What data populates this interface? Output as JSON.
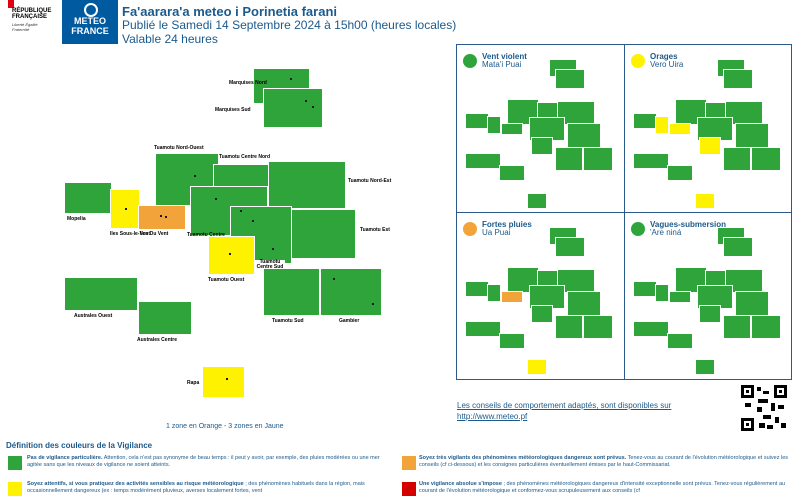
{
  "header": {
    "republique": "RÉPUBLIQUE FRANÇAISE",
    "devise": "Liberté Égalité Fraternité",
    "logo_line1": "METEO",
    "logo_line2": "FRANCE",
    "title": "Fa'aarara'a meteo i Porinetia farani",
    "published": "Publié le Samedi 14 Septembre 2024 à 15h00 (heures locales)",
    "validity": "Valable 24 heures"
  },
  "map": {
    "zones": [
      {
        "name": "Marquises Nord",
        "level": "green"
      },
      {
        "name": "Marquises Sud",
        "level": "green"
      },
      {
        "name": "Tuamotu Nord-Ouest",
        "level": "green"
      },
      {
        "name": "Tuamotu Centre Nord",
        "level": "green"
      },
      {
        "name": "Tuamotu Nord-Est",
        "level": "green"
      },
      {
        "name": "Mopelia",
        "level": "green"
      },
      {
        "name": "Iles Sous-le-Vent",
        "level": "yellow"
      },
      {
        "name": "Iles Du Vent",
        "level": "orange"
      },
      {
        "name": "Tuamotu Centre",
        "level": "green"
      },
      {
        "name": "Tuamotu Est",
        "level": "green"
      },
      {
        "name": "Tuamotu Ouest",
        "level": "yellow"
      },
      {
        "name": "Tuamotu Centre Sud",
        "level": "green"
      },
      {
        "name": "Australes Ouest",
        "level": "green"
      },
      {
        "name": "Australes Centre",
        "level": "green"
      },
      {
        "name": "Tuamotu Sud",
        "level": "green"
      },
      {
        "name": "Gambier",
        "level": "green"
      },
      {
        "name": "Rapa",
        "level": "yellow"
      }
    ],
    "summary": "1 zone en Orange - 3 zones en Jaune"
  },
  "panels": [
    {
      "title": "Vent violent",
      "subtitle": "Mata'i Puai",
      "icon": "wind-icon",
      "icon_color": "#2fa43a"
    },
    {
      "title": "Orages",
      "subtitle": "Vero Uira",
      "icon": "lightning-icon",
      "icon_color": "#fff200"
    },
    {
      "title": "Fortes pluies",
      "subtitle": "Ua Puai",
      "icon": "rain-icon",
      "icon_color": "#f2a33a"
    },
    {
      "title": "Vagues-submersion",
      "subtitle": "'Are niná",
      "icon": "wave-icon",
      "icon_color": "#2fa43a"
    }
  ],
  "advice": {
    "text": "Les conseils de comportement adaptés, sont disponibles sur",
    "url": "http://www.meteo.pf"
  },
  "legend": {
    "title": "Définition des couleurs de la Vigilance",
    "green_bold": "Pas de vigilance particulière.",
    "green_text": "Attention, cela n'est pas synonyme de beau temps : il peut y avoir, par exemple, des pluies modérées ou une mer agitée sans que les niveaux de vigilance ne soient atteints.",
    "yellow_bold": "Soyez attentifs, si vous pratiquez des activités sensibles au risque météorologique",
    "yellow_text": "; des phénomènes habituels dans la région, mais occasionnellement dangereux (ex : temps modérément pluvieux, averses localement fortes, vent",
    "orange_bold": "Soyez très vigilants des phénomènes météorologiques dangereux sont prévus.",
    "orange_text": "Tenez-vous au courant de l'évolution météorologique et suivez les conseils (cf ci-dessous) et les consignes particulières éventuellement émises par le haut-Commissariat.",
    "red_bold": "Une vigilance absolue s'impose",
    "red_text": "; des phénomènes météorologiques dangereux d'intensité exceptionnelle sont prévus. Tenez-vous régulièrement au courant de l'évolution météorologique et conformez-vous scrupuleusement aux conseils (cf",
    "colors": {
      "green": "#2fa43a",
      "yellow": "#fff200",
      "orange": "#f2a33a",
      "red": "#d40000"
    }
  }
}
